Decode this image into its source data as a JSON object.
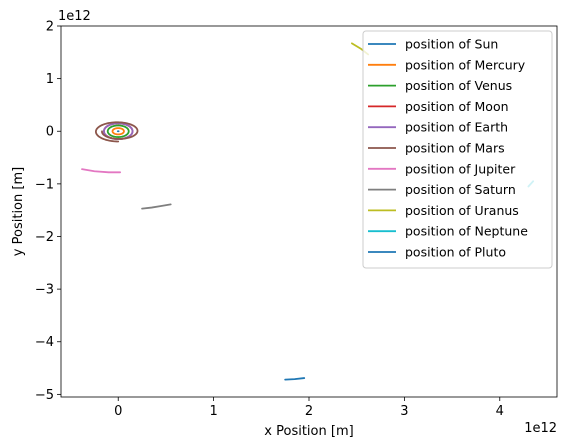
{
  "chart_data": {
    "type": "line",
    "xlabel": "x Position [m]",
    "ylabel": "y Position [m]",
    "x_offset_label": "1e12",
    "y_offset_label": "1e12",
    "xlim": [
      -0.6,
      4.6
    ],
    "ylim": [
      -5.05,
      2.0
    ],
    "x_ticks": [
      {
        "value": 0,
        "label": "0"
      },
      {
        "value": 1,
        "label": "1"
      },
      {
        "value": 2,
        "label": "2"
      },
      {
        "value": 3,
        "label": "3"
      },
      {
        "value": 4,
        "label": "4"
      }
    ],
    "y_ticks": [
      {
        "value": -5,
        "label": "−5"
      },
      {
        "value": -4,
        "label": "−4"
      },
      {
        "value": -3,
        "label": "−3"
      },
      {
        "value": -2,
        "label": "−2"
      },
      {
        "value": -1,
        "label": "−1"
      },
      {
        "value": 0,
        "label": "0"
      },
      {
        "value": 1,
        "label": "1"
      },
      {
        "value": 2,
        "label": "2"
      }
    ],
    "grid": false,
    "legend_position": "top-right",
    "series": [
      {
        "name": "position of Sun",
        "color": "#1f77b4",
        "kind": "point",
        "center": [
          0,
          0
        ]
      },
      {
        "name": "position of Mercury",
        "color": "#ff7f0e",
        "kind": "orbit",
        "center": [
          0,
          0
        ],
        "rx": 0.06,
        "ry": 0.06,
        "turns": 1
      },
      {
        "name": "position of Venus",
        "color": "#2ca02c",
        "kind": "orbit",
        "center": [
          0,
          0
        ],
        "rx": 0.11,
        "ry": 0.11,
        "turns": 1
      },
      {
        "name": "position of Moon",
        "color": "#d62728",
        "kind": "orbit",
        "center": [
          0,
          0
        ],
        "rx": 0.15,
        "ry": 0.15,
        "turns": 1
      },
      {
        "name": "position of Earth",
        "color": "#9467bd",
        "kind": "orbit",
        "center": [
          0,
          0
        ],
        "rx": 0.15,
        "ry": 0.15,
        "turns": 1
      },
      {
        "name": "position of Mars",
        "color": "#8c564b",
        "kind": "spiral",
        "center": [
          0,
          0
        ],
        "r_start": 0.17,
        "r_end": 0.25,
        "turns": 1.25
      },
      {
        "name": "position of Jupiter",
        "color": "#e377c2",
        "kind": "path",
        "x": [
          -0.38,
          -0.25,
          -0.1,
          0.02
        ],
        "y": [
          -0.72,
          -0.76,
          -0.78,
          -0.78
        ]
      },
      {
        "name": "position of Saturn",
        "color": "#7f7f7f",
        "kind": "path",
        "x": [
          0.25,
          0.35,
          0.45,
          0.55
        ],
        "y": [
          -1.47,
          -1.45,
          -1.42,
          -1.39
        ]
      },
      {
        "name": "position of Uranus",
        "color": "#bcbd22",
        "kind": "path",
        "x": [
          2.45,
          2.55,
          2.62
        ],
        "y": [
          1.67,
          1.56,
          1.46
        ]
      },
      {
        "name": "position of Neptune",
        "color": "#17becf",
        "kind": "path",
        "x": [
          4.3,
          4.35
        ],
        "y": [
          -1.05,
          -0.95
        ]
      },
      {
        "name": "position of Pluto",
        "color": "#1f77b4",
        "kind": "path",
        "x": [
          1.75,
          1.85,
          1.95
        ],
        "y": [
          -4.72,
          -4.71,
          -4.69
        ]
      }
    ]
  }
}
